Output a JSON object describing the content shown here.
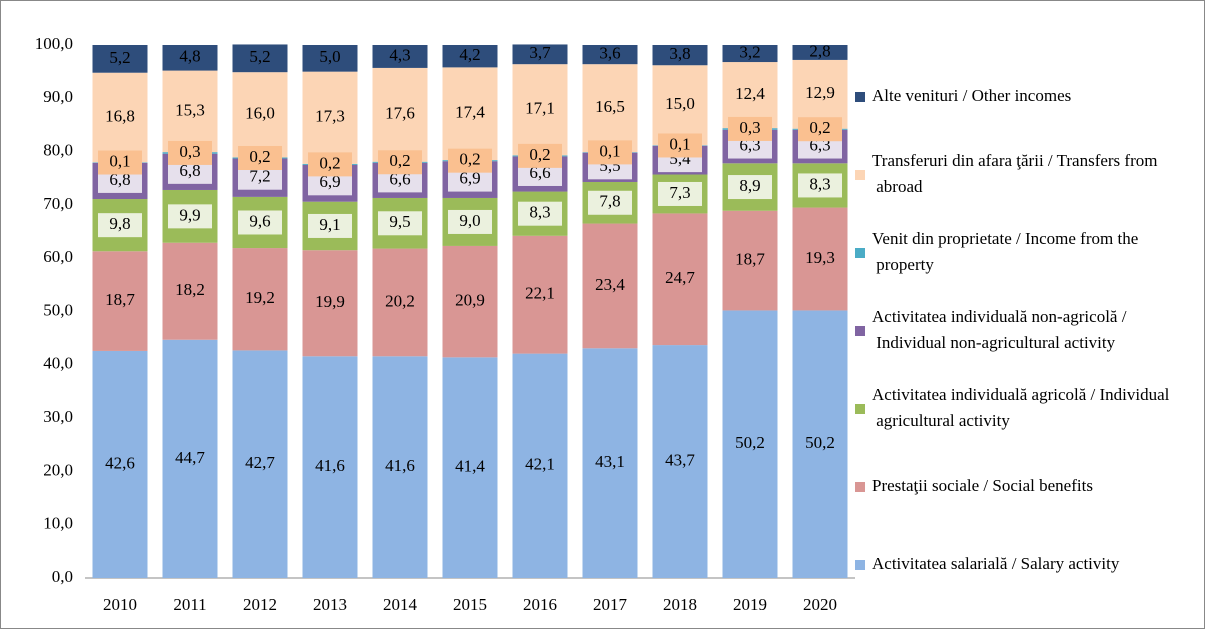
{
  "chart_data": {
    "type": "stacked_bar",
    "categories": [
      "2010",
      "2011",
      "2012",
      "2013",
      "2014",
      "2015",
      "2016",
      "2017",
      "2018",
      "2019",
      "2020"
    ],
    "ylim": [
      0,
      100
    ],
    "yticks": [
      {
        "value": 0,
        "label": "0,0"
      },
      {
        "value": 10,
        "label": "10,0"
      },
      {
        "value": 20,
        "label": "20,0"
      },
      {
        "value": 30,
        "label": "30,0"
      },
      {
        "value": 40,
        "label": "40,0"
      },
      {
        "value": 50,
        "label": "50,0"
      },
      {
        "value": 60,
        "label": "60,0"
      },
      {
        "value": 70,
        "label": "70,0"
      },
      {
        "value": 80,
        "label": "80,0"
      },
      {
        "value": 90,
        "label": "90,0"
      },
      {
        "value": 100,
        "label": "100,0"
      }
    ],
    "legend": "right",
    "series": [
      {
        "name": "Activitatea salarială / Salary activity",
        "color": "#8eb4e3",
        "values": [
          42.6,
          44.7,
          42.7,
          41.6,
          41.6,
          41.4,
          42.1,
          43.1,
          43.7,
          50.2,
          50.2
        ],
        "value_labels": [
          "42,6",
          "44,7",
          "42,7",
          "41,6",
          "41,6",
          "41,4",
          "42,1",
          "43,1",
          "43,7",
          "50,2",
          "50,2"
        ]
      },
      {
        "name": "Prestaţii sociale / Social benefits",
        "color": "#d99694",
        "values": [
          18.7,
          18.2,
          19.2,
          19.9,
          20.2,
          20.9,
          22.1,
          23.4,
          24.7,
          18.7,
          19.3
        ],
        "value_labels": [
          "18,7",
          "18,2",
          "19,2",
          "19,9",
          "20,2",
          "20,9",
          "22,1",
          "23,4",
          "24,7",
          "18,7",
          "19,3"
        ]
      },
      {
        "name": "Activitatea individuală agricolă / Individual agricultural activity",
        "color": "#9bbb59",
        "label_color": "#ebf1de",
        "values": [
          9.8,
          9.9,
          9.6,
          9.1,
          9.5,
          9.0,
          8.3,
          7.8,
          7.3,
          8.9,
          8.3
        ],
        "value_labels": [
          "9,8",
          "9,9",
          "9,6",
          "9,1",
          "9,5",
          "9,0",
          "8,3",
          "7,8",
          "7,3",
          "8,9",
          "8,3"
        ]
      },
      {
        "name": "Activitatea individuală non-agricolă / Individual non-agricultural activity",
        "color": "#8064a2",
        "label_color": "#e6e0ec",
        "values": [
          6.8,
          6.8,
          7.2,
          6.9,
          6.6,
          6.9,
          6.6,
          5.5,
          5.4,
          6.3,
          6.3
        ],
        "value_labels": [
          "6,8",
          "6,8",
          "7,2",
          "6,9",
          "6,6",
          "6,9",
          "6,6",
          "5,5",
          "5,4",
          "6,3",
          "6,3"
        ]
      },
      {
        "name": "Venit din proprietate / Income from the property",
        "color": "#4bacc6",
        "label_color": "#fac090",
        "values": [
          0.1,
          0.3,
          0.2,
          0.2,
          0.2,
          0.2,
          0.2,
          0.1,
          0.1,
          0.3,
          0.2
        ],
        "value_labels": [
          "0,1",
          "0,3",
          "0,2",
          "0,2",
          "0,2",
          "0,2",
          "0,2",
          "0,1",
          "0,1",
          "0,3",
          "0,2"
        ]
      },
      {
        "name": "Transferuri din afara ţării / Transfers from abroad",
        "color": "#fcd5b5",
        "values": [
          16.8,
          15.3,
          16.0,
          17.3,
          17.6,
          17.4,
          17.1,
          16.5,
          15.0,
          12.4,
          12.9
        ],
        "value_labels": [
          "16,8",
          "15,3",
          "16,0",
          "17,3",
          "17,6",
          "17,4",
          "17,1",
          "16,5",
          "15,0",
          "12,4",
          "12,9"
        ]
      },
      {
        "name": "Alte venituri / Other incomes",
        "color": "#2e4d7b",
        "values": [
          5.2,
          4.8,
          5.2,
          5.0,
          4.3,
          4.2,
          3.7,
          3.6,
          3.8,
          3.2,
          2.8
        ],
        "value_labels": [
          "5,2",
          "4,8",
          "5,2",
          "5,0",
          "4,3",
          "4,2",
          "3,7",
          "3,6",
          "3,8",
          "3,2",
          "2,8"
        ]
      }
    ]
  }
}
